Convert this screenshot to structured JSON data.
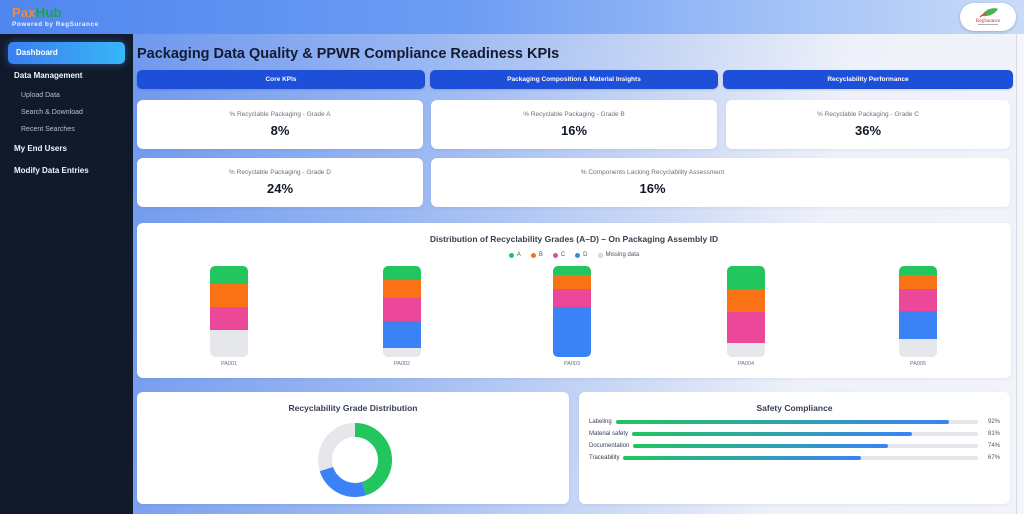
{
  "app": {
    "brand_part1": "Pax",
    "brand_part2": "Hub",
    "powered_by": "Powered by RegSurance",
    "partner_logo": "RegSurance"
  },
  "sidebar": {
    "items": [
      {
        "label": "Dashboard",
        "active": true
      },
      {
        "label": "Data Management"
      },
      {
        "label": "Upload Data",
        "sub": true
      },
      {
        "label": "Search & Download",
        "sub": true
      },
      {
        "label": "Recent Searches",
        "sub": true
      },
      {
        "label": "My End Users"
      },
      {
        "label": "Modify Data Entries"
      }
    ]
  },
  "page": {
    "title": "Packaging Data Quality & PPWR Compliance Readiness KPIs"
  },
  "tabs": [
    {
      "label": "Core KPIs"
    },
    {
      "label": "Packaging Composition & Material Insights"
    },
    {
      "label": "Recyclability Performance"
    }
  ],
  "kpis": [
    {
      "label": "% Recyclable Packaging - Grade A",
      "value": "8%"
    },
    {
      "label": "% Recyclable Packaging - Grade B",
      "value": "16%"
    },
    {
      "label": "% Recyclable Packaging - Grade C",
      "value": "36%"
    },
    {
      "label": "% Recyclable Packaging - Grade D",
      "value": "24%"
    },
    {
      "label": "% Components Lacking Recyclability Assessment",
      "value": "16%"
    }
  ],
  "colors": {
    "A": "#22c55e",
    "B": "#f97316",
    "C": "#ec4899",
    "D": "#3b82f6",
    "Missing": "#e5e7eb",
    "accent": "#1e4fd8"
  },
  "chart_data": [
    {
      "type": "bar",
      "stacked": true,
      "normalized": true,
      "title": "Distribution of Recyclability Grades (A–D) – On Packaging Assembly ID",
      "legend_position": "top-center",
      "categories": [
        "PA001",
        "PA002",
        "PA003",
        "PA004",
        "PA005"
      ],
      "series": [
        {
          "name": "A",
          "values": [
            20,
            15,
            10,
            25,
            10
          ]
        },
        {
          "name": "B",
          "values": [
            25,
            20,
            15,
            25,
            15
          ]
        },
        {
          "name": "C",
          "values": [
            25,
            25,
            20,
            35,
            25
          ]
        },
        {
          "name": "D",
          "values": [
            0,
            30,
            55,
            0,
            30
          ]
        },
        {
          "name": "Missing data",
          "values": [
            30,
            10,
            0,
            15,
            20
          ]
        }
      ],
      "unit": "%"
    },
    {
      "type": "pie",
      "donut": true,
      "title": "Recyclability Grade Distribution",
      "slices": [
        {
          "name": "A",
          "value": 45
        },
        {
          "name": "D",
          "value": 25
        },
        {
          "name": "Missing data",
          "value": 30
        }
      ]
    },
    {
      "type": "bar",
      "orientation": "horizontal",
      "title": "Safety Compliance",
      "categories": [
        "Labeling",
        "Material safety",
        "Documentation",
        "Traceability"
      ],
      "values": [
        92,
        81,
        74,
        67
      ],
      "value_labels": [
        "92%",
        "81%",
        "74%",
        "67%"
      ],
      "xlim": [
        0,
        100
      ]
    }
  ]
}
